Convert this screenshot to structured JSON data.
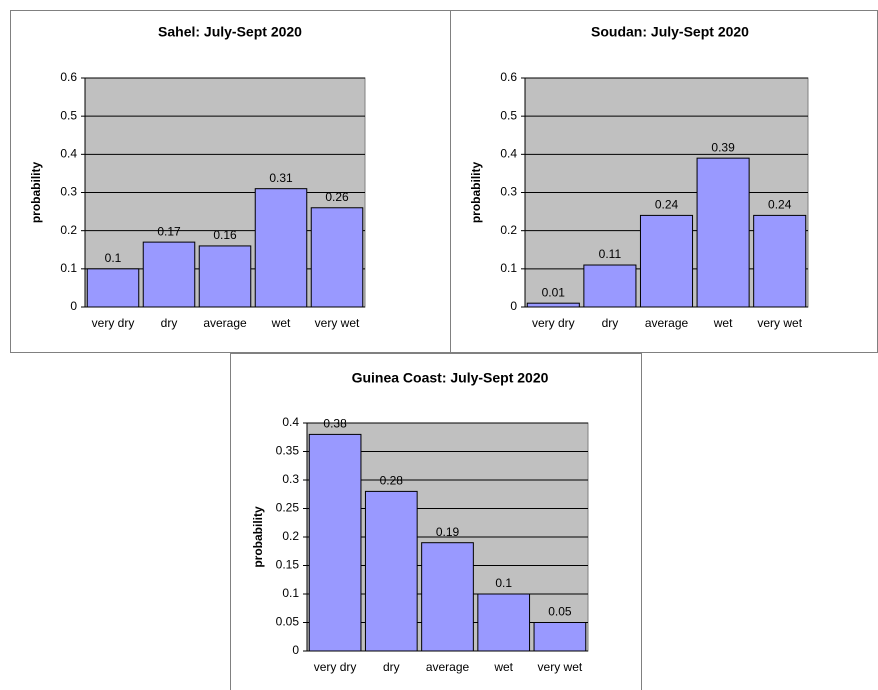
{
  "chart_data": [
    {
      "type": "bar",
      "title": "Sahel: July-Sept 2020",
      "y_label": "probability",
      "categories": [
        "very dry",
        "dry",
        "average",
        "wet",
        "very wet"
      ],
      "values": [
        0.1,
        0.17,
        0.16,
        0.31,
        0.26
      ],
      "color": "#9999ff",
      "ylim": [
        0,
        0.6
      ],
      "yticks": [
        0,
        0.1,
        0.2,
        0.3,
        0.4,
        0.5,
        0.6
      ],
      "grid": true
    },
    {
      "type": "bar",
      "title": "Soudan: July-Sept 2020",
      "y_label": "probability",
      "categories": [
        "very dry",
        "dry",
        "average",
        "wet",
        "very wet"
      ],
      "values": [
        0.01,
        0.11,
        0.24,
        0.39,
        0.24
      ],
      "color": "#9999ff",
      "ylim": [
        0,
        0.6
      ],
      "yticks": [
        0,
        0.1,
        0.2,
        0.3,
        0.4,
        0.5,
        0.6
      ],
      "grid": true
    },
    {
      "type": "bar",
      "title": "Guinea Coast: July-Sept 2020",
      "y_label": "probability",
      "categories": [
        "very dry",
        "dry",
        "average",
        "wet",
        "very wet"
      ],
      "values": [
        0.38,
        0.28,
        0.19,
        0.1,
        0.05
      ],
      "color": "#9999ff",
      "ylim": [
        0,
        0.4
      ],
      "yticks": [
        0,
        0.05,
        0.1,
        0.15,
        0.2,
        0.25,
        0.3,
        0.35,
        0.4
      ],
      "grid": true
    }
  ]
}
